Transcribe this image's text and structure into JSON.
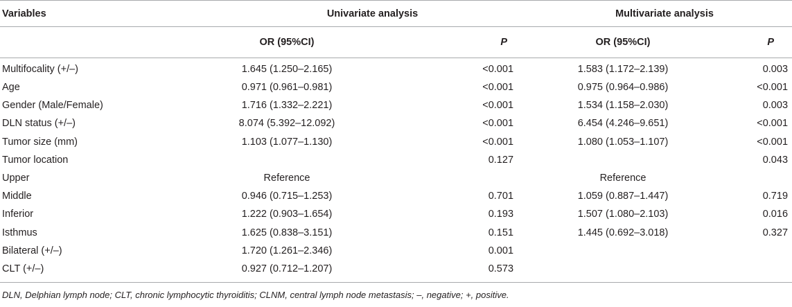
{
  "header": {
    "variables": "Variables",
    "univariate": "Univariate analysis",
    "multivariate": "Multivariate analysis",
    "or_label": "OR (95%CI)",
    "p_label": "P"
  },
  "rows": [
    {
      "variable": "Multifocality (+/–)",
      "uni_or": "1.645 (1.250–2.165)",
      "uni_p": "<0.001",
      "multi_or": "1.583 (1.172–2.139)",
      "multi_p": "0.003"
    },
    {
      "variable": "Age",
      "uni_or": "0.971 (0.961–0.981)",
      "uni_p": "<0.001",
      "multi_or": "0.975 (0.964–0.986)",
      "multi_p": "<0.001"
    },
    {
      "variable": "Gender (Male/Female)",
      "uni_or": "1.716 (1.332–2.221)",
      "uni_p": "<0.001",
      "multi_or": "1.534 (1.158–2.030)",
      "multi_p": "0.003"
    },
    {
      "variable": "DLN status (+/–)",
      "uni_or": "8.074 (5.392–12.092)",
      "uni_p": "<0.001",
      "multi_or": "6.454 (4.246–9.651)",
      "multi_p": "<0.001"
    },
    {
      "variable": "Tumor size (mm)",
      "uni_or": "1.103 (1.077–1.130)",
      "uni_p": "<0.001",
      "multi_or": "1.080 (1.053–1.107)",
      "multi_p": "<0.001"
    },
    {
      "variable": "Tumor location",
      "uni_or": "",
      "uni_p": "0.127",
      "multi_or": "",
      "multi_p": "0.043"
    },
    {
      "variable": "Upper",
      "uni_or": "Reference",
      "uni_p": "",
      "multi_or": "Reference",
      "multi_p": ""
    },
    {
      "variable": "Middle",
      "uni_or": "0.946 (0.715–1.253)",
      "uni_p": "0.701",
      "multi_or": "1.059 (0.887–1.447)",
      "multi_p": "0.719"
    },
    {
      "variable": "Inferior",
      "uni_or": "1.222 (0.903–1.654)",
      "uni_p": "0.193",
      "multi_or": "1.507 (1.080–2.103)",
      "multi_p": "0.016"
    },
    {
      "variable": "Isthmus",
      "uni_or": "1.625 (0.838–3.151)",
      "uni_p": "0.151",
      "multi_or": "1.445 (0.692–3.018)",
      "multi_p": "0.327"
    },
    {
      "variable": "Bilateral (+/–)",
      "uni_or": "1.720 (1.261–2.346)",
      "uni_p": "0.001",
      "multi_or": "",
      "multi_p": ""
    },
    {
      "variable": "CLT (+/–)",
      "uni_or": "0.927 (0.712–1.207)",
      "uni_p": "0.573",
      "multi_or": "",
      "multi_p": ""
    }
  ],
  "footnote": "DLN, Delphian lymph node; CLT, chronic lymphocytic thyroiditis; CLNM, central lymph node metastasis; –, negative; +, positive."
}
